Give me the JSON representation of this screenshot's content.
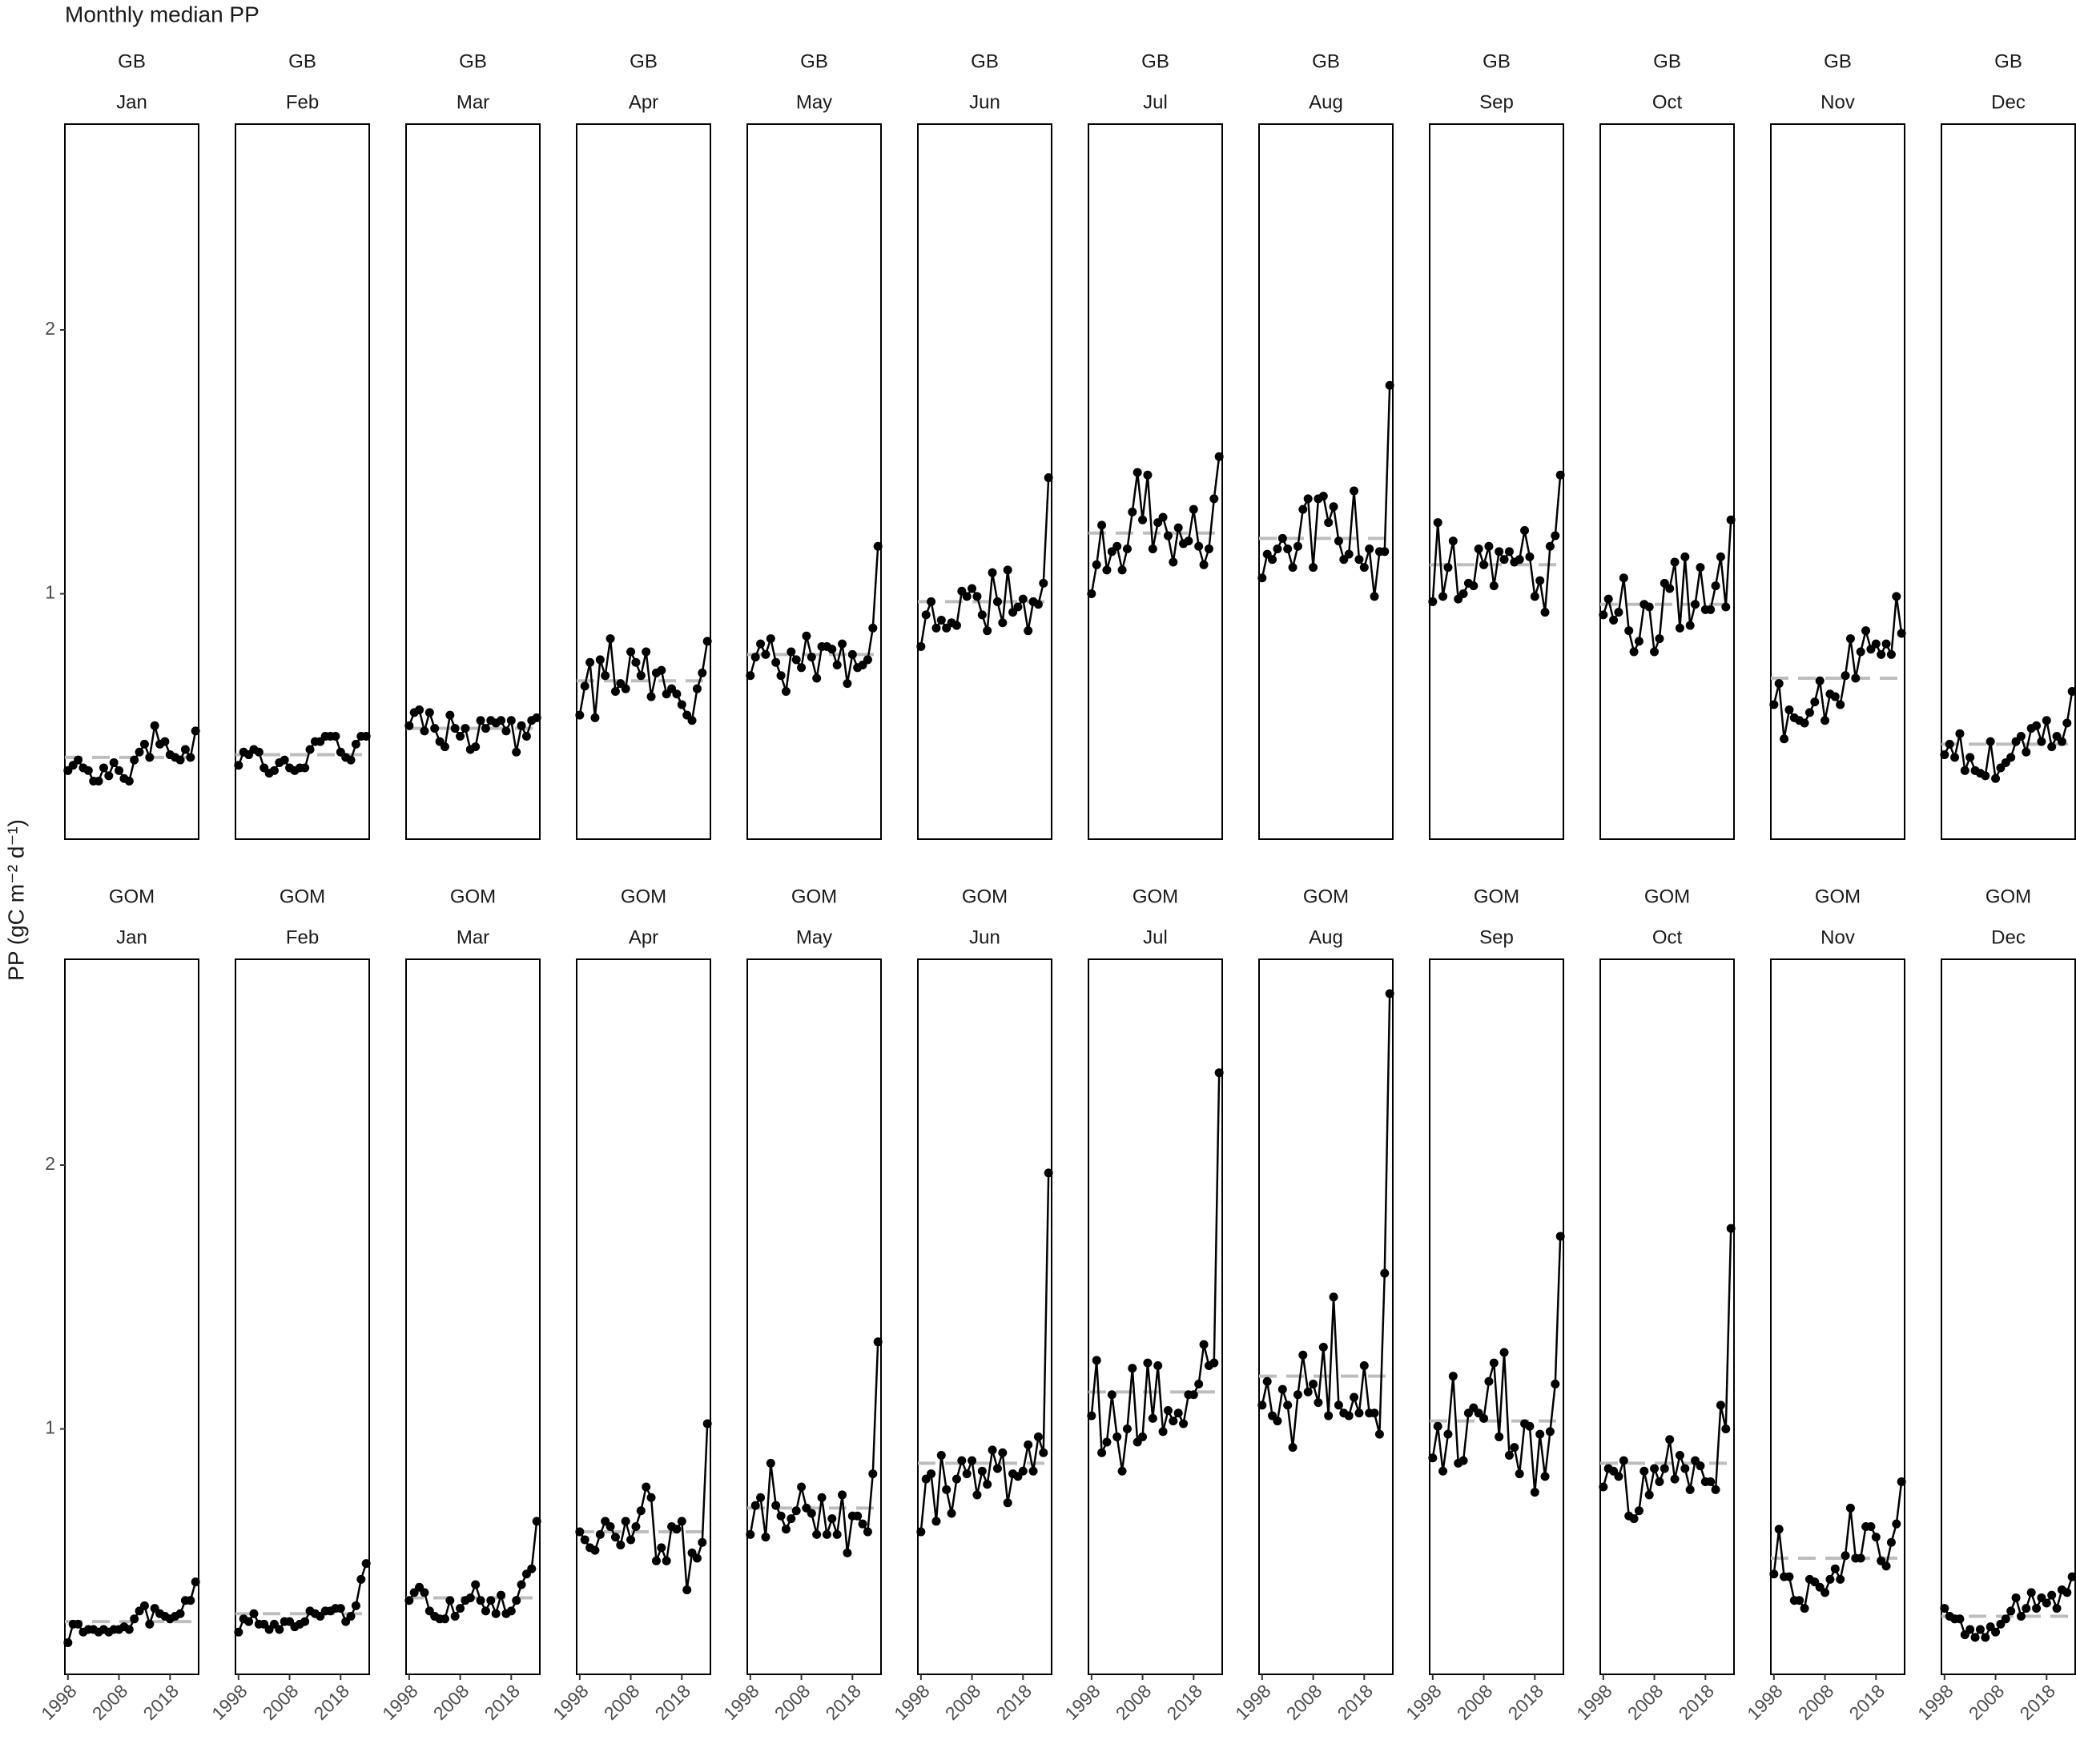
{
  "chart_data": {
    "type": "line",
    "title": "Monthly median PP",
    "y_label": "PP (gC m⁻² d⁻¹)",
    "x": [
      1998,
      1999,
      2000,
      2001,
      2002,
      2003,
      2004,
      2005,
      2006,
      2007,
      2008,
      2009,
      2010,
      2011,
      2012,
      2013,
      2014,
      2015,
      2016,
      2017,
      2018,
      2019,
      2020,
      2021,
      2022,
      2023
    ],
    "xlim": [
      1997.4,
      2023.6
    ],
    "xticks": [
      1998,
      2008,
      2018
    ],
    "ylim": [
      0.07,
      2.78
    ],
    "yticks": [
      1,
      2
    ],
    "color": "#000000",
    "mean_color": "#bdbdbd",
    "panels": [
      {
        "region": "GB",
        "month": "Jan",
        "mean": 0.38,
        "values": [
          0.33,
          0.35,
          0.37,
          0.34,
          0.33,
          0.29,
          0.29,
          0.34,
          0.31,
          0.36,
          0.33,
          0.3,
          0.29,
          0.37,
          0.4,
          0.43,
          0.38,
          0.5,
          0.43,
          0.44,
          0.39,
          0.38,
          0.37,
          0.41,
          0.38,
          0.48
        ]
      },
      {
        "region": "GB",
        "month": "Feb",
        "mean": 0.39,
        "values": [
          0.35,
          0.4,
          0.39,
          0.41,
          0.4,
          0.34,
          0.32,
          0.33,
          0.36,
          0.37,
          0.34,
          0.33,
          0.34,
          0.34,
          0.41,
          0.44,
          0.44,
          0.46,
          0.46,
          0.46,
          0.4,
          0.38,
          0.37,
          0.43,
          0.46,
          0.46
        ]
      },
      {
        "region": "GB",
        "month": "Mar",
        "mean": 0.49,
        "values": [
          0.5,
          0.55,
          0.56,
          0.48,
          0.55,
          0.49,
          0.44,
          0.42,
          0.54,
          0.49,
          0.46,
          0.49,
          0.41,
          0.42,
          0.52,
          0.49,
          0.52,
          0.51,
          0.52,
          0.48,
          0.52,
          0.4,
          0.5,
          0.46,
          0.52,
          0.53
        ]
      },
      {
        "region": "GB",
        "month": "Apr",
        "mean": 0.67,
        "values": [
          0.54,
          0.65,
          0.74,
          0.53,
          0.75,
          0.69,
          0.83,
          0.63,
          0.66,
          0.64,
          0.78,
          0.74,
          0.69,
          0.78,
          0.61,
          0.7,
          0.71,
          0.62,
          0.64,
          0.62,
          0.58,
          0.54,
          0.52,
          0.64,
          0.7,
          0.82
        ]
      },
      {
        "region": "GB",
        "month": "May",
        "mean": 0.77,
        "values": [
          0.69,
          0.76,
          0.81,
          0.77,
          0.83,
          0.74,
          0.69,
          0.63,
          0.78,
          0.75,
          0.72,
          0.84,
          0.76,
          0.68,
          0.8,
          0.8,
          0.79,
          0.73,
          0.81,
          0.66,
          0.77,
          0.72,
          0.73,
          0.75,
          0.87,
          1.18
        ]
      },
      {
        "region": "GB",
        "month": "Jun",
        "mean": 0.97,
        "values": [
          0.8,
          0.92,
          0.97,
          0.87,
          0.9,
          0.87,
          0.89,
          0.88,
          1.01,
          0.99,
          1.02,
          0.99,
          0.92,
          0.86,
          1.08,
          0.97,
          0.89,
          1.09,
          0.93,
          0.95,
          0.98,
          0.86,
          0.97,
          0.96,
          1.04,
          1.44
        ]
      },
      {
        "region": "GB",
        "month": "Jul",
        "mean": 1.23,
        "values": [
          1.0,
          1.11,
          1.26,
          1.09,
          1.16,
          1.18,
          1.09,
          1.17,
          1.31,
          1.46,
          1.28,
          1.45,
          1.17,
          1.27,
          1.29,
          1.22,
          1.12,
          1.25,
          1.19,
          1.2,
          1.32,
          1.18,
          1.11,
          1.17,
          1.36,
          1.52
        ]
      },
      {
        "region": "GB",
        "month": "Aug",
        "mean": 1.21,
        "values": [
          1.06,
          1.15,
          1.13,
          1.17,
          1.21,
          1.17,
          1.1,
          1.18,
          1.32,
          1.36,
          1.1,
          1.36,
          1.37,
          1.27,
          1.33,
          1.2,
          1.13,
          1.15,
          1.39,
          1.13,
          1.1,
          1.17,
          0.99,
          1.16,
          1.16,
          1.79
        ]
      },
      {
        "region": "GB",
        "month": "Sep",
        "mean": 1.11,
        "values": [
          0.97,
          1.27,
          0.99,
          1.1,
          1.2,
          0.98,
          1.0,
          1.04,
          1.03,
          1.17,
          1.11,
          1.18,
          1.03,
          1.16,
          1.13,
          1.16,
          1.12,
          1.13,
          1.24,
          1.14,
          0.99,
          1.05,
          0.93,
          1.18,
          1.22,
          1.45
        ]
      },
      {
        "region": "GB",
        "month": "Oct",
        "mean": 0.96,
        "values": [
          0.92,
          0.98,
          0.9,
          0.93,
          1.06,
          0.86,
          0.78,
          0.82,
          0.96,
          0.95,
          0.78,
          0.83,
          1.04,
          1.02,
          1.12,
          0.87,
          1.14,
          0.88,
          0.96,
          1.1,
          0.94,
          0.94,
          1.03,
          1.14,
          0.95,
          1.28
        ]
      },
      {
        "region": "GB",
        "month": "Nov",
        "mean": 0.68,
        "values": [
          0.58,
          0.66,
          0.45,
          0.56,
          0.53,
          0.52,
          0.51,
          0.55,
          0.59,
          0.67,
          0.52,
          0.62,
          0.61,
          0.58,
          0.69,
          0.83,
          0.68,
          0.78,
          0.86,
          0.79,
          0.81,
          0.77,
          0.81,
          0.77,
          0.99,
          0.85
        ]
      },
      {
        "region": "GB",
        "month": "Dec",
        "mean": 0.43,
        "values": [
          0.39,
          0.43,
          0.38,
          0.47,
          0.33,
          0.38,
          0.33,
          0.32,
          0.31,
          0.44,
          0.3,
          0.34,
          0.36,
          0.38,
          0.44,
          0.46,
          0.4,
          0.49,
          0.5,
          0.44,
          0.52,
          0.42,
          0.46,
          0.44,
          0.51,
          0.63
        ]
      },
      {
        "region": "GOM",
        "month": "Jan",
        "mean": 0.27,
        "values": [
          0.19,
          0.26,
          0.26,
          0.23,
          0.24,
          0.24,
          0.23,
          0.24,
          0.23,
          0.24,
          0.24,
          0.25,
          0.24,
          0.28,
          0.31,
          0.33,
          0.26,
          0.32,
          0.3,
          0.29,
          0.28,
          0.29,
          0.3,
          0.35,
          0.35,
          0.42
        ]
      },
      {
        "region": "GOM",
        "month": "Feb",
        "mean": 0.3,
        "values": [
          0.23,
          0.28,
          0.27,
          0.3,
          0.26,
          0.26,
          0.24,
          0.26,
          0.24,
          0.27,
          0.27,
          0.25,
          0.26,
          0.27,
          0.31,
          0.3,
          0.29,
          0.31,
          0.31,
          0.32,
          0.32,
          0.27,
          0.29,
          0.33,
          0.43,
          0.49
        ]
      },
      {
        "region": "GOM",
        "month": "Mar",
        "mean": 0.36,
        "values": [
          0.35,
          0.38,
          0.4,
          0.38,
          0.31,
          0.29,
          0.28,
          0.28,
          0.35,
          0.29,
          0.32,
          0.35,
          0.36,
          0.41,
          0.35,
          0.31,
          0.35,
          0.3,
          0.37,
          0.3,
          0.31,
          0.35,
          0.41,
          0.45,
          0.47,
          0.65
        ]
      },
      {
        "region": "GOM",
        "month": "Apr",
        "mean": 0.61,
        "values": [
          0.61,
          0.58,
          0.55,
          0.54,
          0.6,
          0.65,
          0.63,
          0.59,
          0.56,
          0.65,
          0.58,
          0.63,
          0.69,
          0.78,
          0.74,
          0.5,
          0.55,
          0.5,
          0.63,
          0.62,
          0.65,
          0.39,
          0.53,
          0.51,
          0.57,
          1.02
        ]
      },
      {
        "region": "GOM",
        "month": "May",
        "mean": 0.7,
        "values": [
          0.6,
          0.71,
          0.74,
          0.59,
          0.87,
          0.71,
          0.67,
          0.62,
          0.66,
          0.69,
          0.78,
          0.7,
          0.68,
          0.6,
          0.74,
          0.6,
          0.66,
          0.6,
          0.75,
          0.53,
          0.67,
          0.67,
          0.64,
          0.61,
          0.83,
          1.33
        ]
      },
      {
        "region": "GOM",
        "month": "Jun",
        "mean": 0.87,
        "values": [
          0.61,
          0.81,
          0.83,
          0.65,
          0.9,
          0.77,
          0.68,
          0.81,
          0.88,
          0.83,
          0.88,
          0.75,
          0.84,
          0.79,
          0.92,
          0.85,
          0.91,
          0.72,
          0.83,
          0.82,
          0.84,
          0.94,
          0.84,
          0.97,
          0.91,
          1.97
        ]
      },
      {
        "region": "GOM",
        "month": "Jul",
        "mean": 1.14,
        "values": [
          1.05,
          1.26,
          0.91,
          0.95,
          1.13,
          0.97,
          0.84,
          1.0,
          1.23,
          0.95,
          0.97,
          1.25,
          1.04,
          1.24,
          0.99,
          1.07,
          1.03,
          1.06,
          1.02,
          1.13,
          1.13,
          1.17,
          1.32,
          1.24,
          1.25,
          2.35
        ]
      },
      {
        "region": "GOM",
        "month": "Aug",
        "mean": 1.2,
        "values": [
          1.09,
          1.18,
          1.05,
          1.03,
          1.15,
          1.09,
          0.93,
          1.13,
          1.28,
          1.14,
          1.17,
          1.1,
          1.31,
          1.05,
          1.5,
          1.09,
          1.06,
          1.05,
          1.12,
          1.06,
          1.24,
          1.06,
          1.06,
          0.98,
          1.59,
          2.65
        ]
      },
      {
        "region": "GOM",
        "month": "Sep",
        "mean": 1.03,
        "values": [
          0.89,
          1.01,
          0.84,
          0.98,
          1.2,
          0.87,
          0.88,
          1.06,
          1.08,
          1.06,
          1.04,
          1.18,
          1.25,
          0.97,
          1.29,
          0.9,
          0.93,
          0.83,
          1.02,
          1.01,
          0.76,
          0.98,
          0.82,
          0.99,
          1.17,
          1.73
        ]
      },
      {
        "region": "GOM",
        "month": "Oct",
        "mean": 0.87,
        "values": [
          0.78,
          0.85,
          0.84,
          0.82,
          0.88,
          0.67,
          0.66,
          0.69,
          0.84,
          0.75,
          0.85,
          0.8,
          0.85,
          0.96,
          0.81,
          0.9,
          0.85,
          0.77,
          0.88,
          0.86,
          0.8,
          0.8,
          0.77,
          1.09,
          1.0,
          1.76
        ]
      },
      {
        "region": "GOM",
        "month": "Nov",
        "mean": 0.51,
        "values": [
          0.45,
          0.62,
          0.44,
          0.44,
          0.35,
          0.35,
          0.32,
          0.43,
          0.42,
          0.4,
          0.38,
          0.43,
          0.47,
          0.43,
          0.52,
          0.7,
          0.51,
          0.51,
          0.63,
          0.63,
          0.59,
          0.5,
          0.48,
          0.57,
          0.64,
          0.8
        ]
      },
      {
        "region": "GOM",
        "month": "Dec",
        "mean": 0.29,
        "values": [
          0.32,
          0.29,
          0.28,
          0.28,
          0.22,
          0.24,
          0.21,
          0.24,
          0.21,
          0.25,
          0.23,
          0.26,
          0.28,
          0.31,
          0.36,
          0.29,
          0.32,
          0.38,
          0.32,
          0.36,
          0.34,
          0.37,
          0.32,
          0.39,
          0.38,
          0.44
        ]
      }
    ]
  }
}
